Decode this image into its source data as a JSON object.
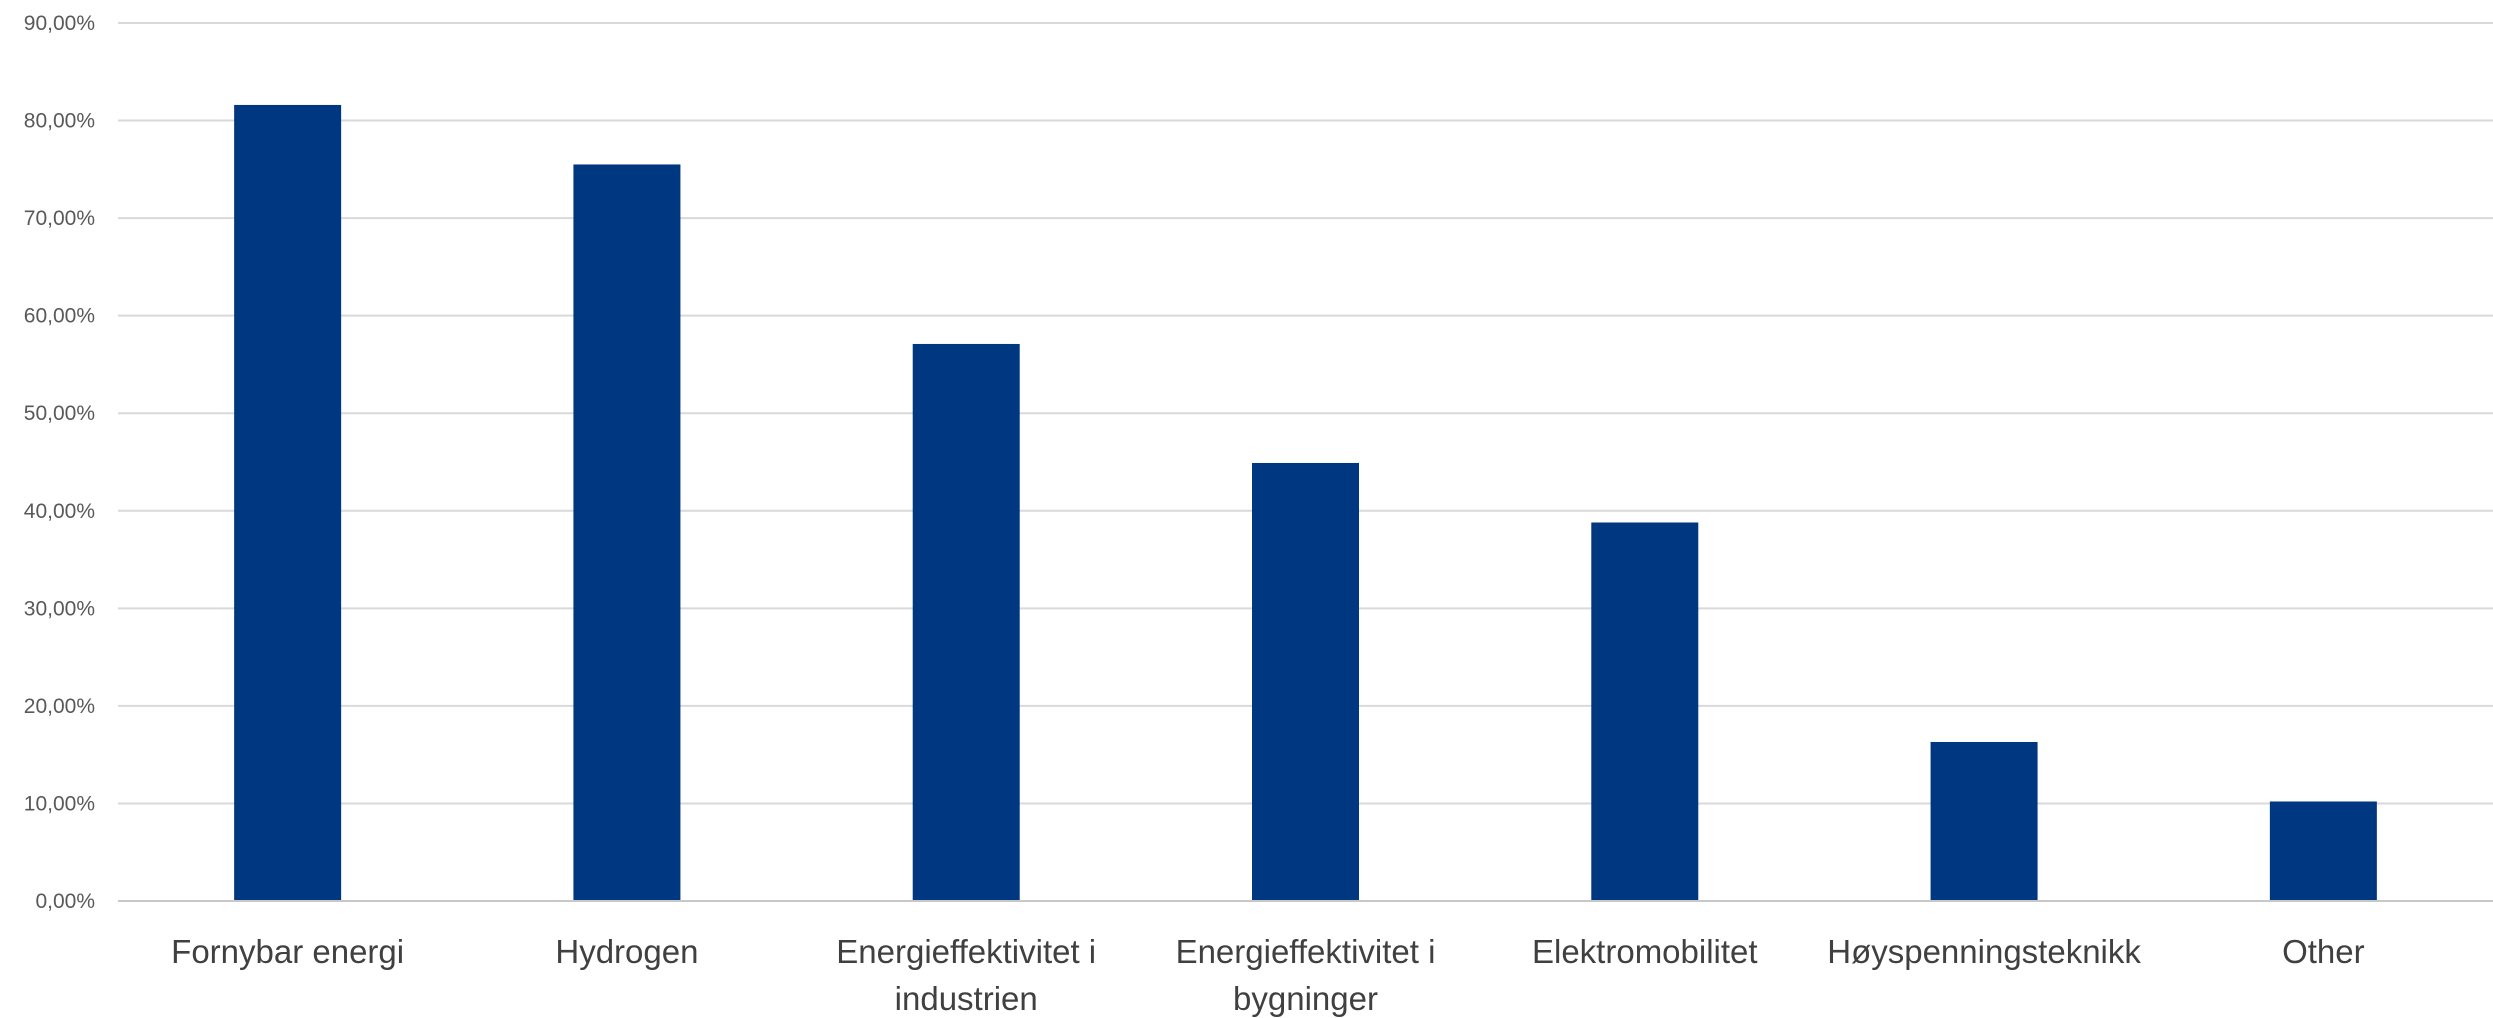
{
  "chart_data": {
    "type": "bar",
    "title": "",
    "xlabel": "",
    "ylabel": "",
    "categories": [
      [
        "Fornybar energi"
      ],
      [
        "Hydrogen"
      ],
      [
        "Energieffektivitet i",
        "industrien"
      ],
      [
        "Energieffektivitet i",
        "bygninger"
      ],
      [
        "Elektromobilitet"
      ],
      [
        "Høyspenningsteknikk"
      ],
      [
        "Other"
      ]
    ],
    "values": [
      81.6,
      75.5,
      57.1,
      44.9,
      38.8,
      16.3,
      10.2
    ],
    "ylim": [
      0,
      90
    ],
    "yticks": [
      0,
      10,
      20,
      30,
      40,
      50,
      60,
      70,
      80,
      90
    ],
    "ytick_labels": [
      "0,00%",
      "10,00%",
      "20,00%",
      "30,00%",
      "40,00%",
      "50,00%",
      "60,00%",
      "70,00%",
      "80,00%",
      "90,00%"
    ],
    "grid": true,
    "legend": "none",
    "bar_color": "#003781"
  }
}
